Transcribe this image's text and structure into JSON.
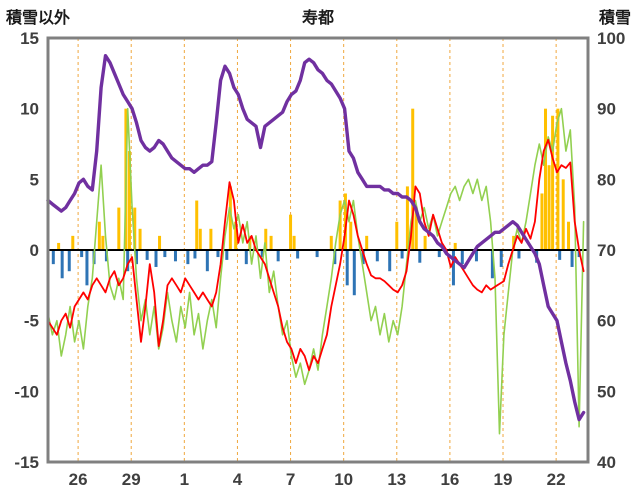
{
  "chart_data": {
    "type": "line",
    "title": "寿都",
    "left_axis_label": "積雪以外",
    "right_axis_label": "積雪",
    "x": {
      "range": [
        0,
        30.5
      ],
      "tick_positions": [
        1.7,
        4.7,
        7.7,
        10.7,
        13.7,
        16.7,
        19.7,
        22.7,
        25.7,
        28.7
      ],
      "tick_labels": [
        "26",
        "29",
        "1",
        "4",
        "7",
        "10",
        "13",
        "16",
        "19",
        "22"
      ]
    },
    "y_left": {
      "range": [
        -15,
        15
      ],
      "ticks": [
        15,
        10,
        5,
        0,
        -5,
        -10,
        -15
      ]
    },
    "y_right": {
      "range": [
        40,
        100
      ],
      "ticks": [
        100,
        90,
        80,
        70,
        60,
        50,
        40
      ]
    },
    "colors": {
      "grid": "#F0A73E",
      "frame": "#808080",
      "zero_line": "#000000",
      "tick_text": "#3f3f3f"
    },
    "series": [
      {
        "name": "orange-bars",
        "type": "bar",
        "axis": "left",
        "color": "#FFC000",
        "points": [
          [
            0.6,
            0.5
          ],
          [
            1.4,
            1.0
          ],
          [
            2.9,
            2.0
          ],
          [
            3.1,
            1.0
          ],
          [
            4.0,
            3.0
          ],
          [
            4.4,
            10.0
          ],
          [
            4.6,
            7.0
          ],
          [
            4.9,
            3.0
          ],
          [
            5.2,
            1.5
          ],
          [
            6.3,
            1.0
          ],
          [
            8.4,
            3.5
          ],
          [
            8.6,
            1.5
          ],
          [
            9.2,
            1.5
          ],
          [
            10.3,
            4.5
          ],
          [
            10.6,
            2.0
          ],
          [
            11.4,
            1.0
          ],
          [
            12.3,
            1.5
          ],
          [
            12.6,
            1.0
          ],
          [
            13.7,
            2.5
          ],
          [
            13.9,
            1.0
          ],
          [
            16.0,
            1.0
          ],
          [
            16.5,
            3.5
          ],
          [
            16.8,
            4.0
          ],
          [
            17.1,
            2.0
          ],
          [
            18.0,
            1.0
          ],
          [
            19.7,
            2.0
          ],
          [
            20.3,
            4.5
          ],
          [
            20.6,
            10.0
          ],
          [
            20.8,
            3.0
          ],
          [
            21.3,
            1.0
          ],
          [
            23.0,
            0.5
          ],
          [
            26.3,
            1.0
          ],
          [
            27.9,
            4.0
          ],
          [
            28.1,
            10.0
          ],
          [
            28.3,
            6.0
          ],
          [
            28.5,
            9.5
          ],
          [
            28.8,
            10.0
          ],
          [
            29.1,
            5.0
          ],
          [
            29.4,
            2.0
          ]
        ]
      },
      {
        "name": "blue-bars",
        "type": "bar",
        "axis": "left",
        "color": "#2E74B5",
        "points": [
          [
            0.3,
            -1.0
          ],
          [
            0.8,
            -2.0
          ],
          [
            1.2,
            -1.5
          ],
          [
            1.9,
            -0.5
          ],
          [
            2.2,
            -2.5
          ],
          [
            2.6,
            -1.0
          ],
          [
            3.3,
            -0.8
          ],
          [
            4.5,
            -1.5
          ],
          [
            5.0,
            -1.0
          ],
          [
            5.6,
            -0.7
          ],
          [
            6.1,
            -1.2
          ],
          [
            6.6,
            -0.5
          ],
          [
            7.2,
            -0.8
          ],
          [
            7.9,
            -1.0
          ],
          [
            8.3,
            -0.6
          ],
          [
            9.0,
            -1.5
          ],
          [
            9.6,
            -0.5
          ],
          [
            10.1,
            -0.7
          ],
          [
            11.2,
            -1.0
          ],
          [
            12.1,
            -0.5
          ],
          [
            13.0,
            -0.8
          ],
          [
            14.1,
            -0.6
          ],
          [
            15.2,
            -0.5
          ],
          [
            16.2,
            -1.0
          ],
          [
            16.9,
            -2.5
          ],
          [
            17.3,
            -3.2
          ],
          [
            17.8,
            -1.0
          ],
          [
            18.6,
            -0.8
          ],
          [
            19.3,
            -1.5
          ],
          [
            20.0,
            -0.6
          ],
          [
            21.0,
            -0.9
          ],
          [
            22.1,
            -0.5
          ],
          [
            22.9,
            -2.5
          ],
          [
            23.4,
            -1.0
          ],
          [
            24.2,
            -0.8
          ],
          [
            25.1,
            -2.0
          ],
          [
            25.6,
            -1.2
          ],
          [
            26.6,
            -0.6
          ],
          [
            27.6,
            -0.9
          ],
          [
            28.9,
            -0.7
          ],
          [
            29.6,
            -1.2
          ],
          [
            30.0,
            -0.5
          ]
        ]
      },
      {
        "name": "green-series",
        "type": "line",
        "axis": "left",
        "color": "#92D050",
        "width": 1.6,
        "x_start": 0,
        "x_step": 0.25,
        "values": [
          -4.5,
          -6,
          -5,
          -7.5,
          -6,
          -4,
          -6.5,
          -5,
          -7,
          -4,
          -2,
          2,
          6,
          1,
          -2.5,
          -3.5,
          -2,
          -3.5,
          10,
          3,
          -2,
          -5,
          -3.5,
          -6,
          -4,
          -7,
          -5.5,
          -3,
          -5,
          -6.5,
          -4,
          -5.5,
          -3,
          -6,
          -4.5,
          -7,
          -5,
          -3.5,
          -5.5,
          -2,
          1,
          3,
          1.5,
          2.5,
          0.5,
          2,
          -1,
          1,
          -2,
          0.5,
          -3,
          -1.5,
          -4,
          -6,
          -5,
          -7.5,
          -9,
          -8,
          -9.5,
          -8.5,
          -7,
          -8.5,
          -6,
          -4,
          -2,
          0.5,
          2.5,
          3.5,
          2,
          3.5,
          1,
          -1,
          -3,
          -5,
          -4,
          -6,
          -4.5,
          -6.5,
          -5,
          -6,
          -4,
          -1,
          2,
          3.5,
          2,
          3,
          1.5,
          2.5,
          1,
          2,
          3,
          4,
          4.5,
          3.5,
          4.5,
          5,
          4,
          5,
          3.5,
          4.5,
          2,
          -2,
          -13,
          -6,
          -3,
          0,
          1.5,
          0.5,
          2,
          4,
          6,
          7.5,
          6,
          8,
          7,
          9,
          10,
          7,
          8.5,
          3,
          -12.5,
          2
        ]
      },
      {
        "name": "red-series",
        "type": "line",
        "axis": "left",
        "color": "#FF0000",
        "width": 1.8,
        "x_start": 0,
        "x_step": 0.25,
        "values": [
          -5,
          -5.5,
          -6,
          -5,
          -4.5,
          -5.5,
          -4,
          -3.5,
          -3,
          -3.5,
          -2.5,
          -2,
          -2.5,
          -3,
          -2,
          -1.5,
          -2.5,
          -2,
          -1,
          -0.5,
          -3.5,
          -6.5,
          -4,
          -1,
          -3,
          -6.8,
          -5,
          -2.5,
          -2,
          -2.5,
          -3,
          -2,
          -2.5,
          -3,
          -3.5,
          -3,
          -3.5,
          -4,
          -3,
          -1,
          2,
          4.8,
          3.5,
          0.5,
          1.8,
          0.5,
          1,
          0,
          -0.5,
          -1,
          -2,
          -3,
          -4,
          -5.5,
          -6.5,
          -7,
          -8,
          -7,
          -7.5,
          -8.5,
          -7.5,
          -8,
          -7,
          -6,
          -4,
          -2.5,
          -1,
          1,
          3.5,
          2.5,
          1,
          0,
          -1,
          -1.8,
          -2,
          -2,
          -2.2,
          -2.5,
          -2.8,
          -3,
          -2.5,
          -1.5,
          1,
          4.5,
          4,
          2,
          1,
          2.5,
          1.5,
          0.5,
          0,
          -1.2,
          -0.5,
          -1,
          -1.5,
          -2,
          -2.5,
          -2.8,
          -3,
          -2.5,
          -2.8,
          -2.6,
          -2.4,
          -2.2,
          -1,
          0,
          1,
          0.5,
          1.5,
          0.8,
          2,
          5,
          7,
          7.8,
          6.5,
          5.5,
          6,
          5.8,
          6.2,
          2,
          0,
          -1.5
        ]
      },
      {
        "name": "snow-depth-purple",
        "type": "line",
        "axis": "right",
        "color": "#7030A0",
        "width": 3.4,
        "x_start": 0,
        "x_step": 0.25,
        "values": [
          77,
          76.5,
          76,
          75.5,
          76,
          77,
          78,
          79.5,
          80,
          79,
          78.5,
          84,
          93,
          97.5,
          96.5,
          95,
          93.5,
          92,
          91,
          90,
          88,
          85.5,
          84.5,
          84,
          84.5,
          85.5,
          85,
          84,
          83,
          82.5,
          82,
          81.5,
          81.5,
          81,
          81.5,
          82,
          82,
          82.5,
          88,
          94,
          96,
          95,
          93,
          92,
          90,
          88.5,
          88,
          87.5,
          84.5,
          87.5,
          88,
          88.5,
          89,
          89.5,
          91,
          92,
          92.5,
          94,
          96.5,
          97,
          96.5,
          95.5,
          95,
          94,
          93.5,
          92.5,
          91.5,
          90,
          84,
          83,
          81,
          80,
          79,
          79,
          79,
          79,
          78.5,
          78.5,
          78,
          78,
          77.5,
          77.5,
          77,
          76,
          74,
          73,
          72.5,
          72,
          71,
          70.5,
          69.5,
          69,
          68.5,
          68,
          67.5,
          68.5,
          69.5,
          70.5,
          71,
          71.5,
          72,
          72.5,
          72.5,
          73,
          73.5,
          74,
          73.5,
          72.5,
          71.5,
          70.5,
          69.5,
          68,
          65,
          62,
          61,
          60,
          57,
          54,
          51.5,
          48.5,
          46,
          47
        ]
      }
    ]
  }
}
